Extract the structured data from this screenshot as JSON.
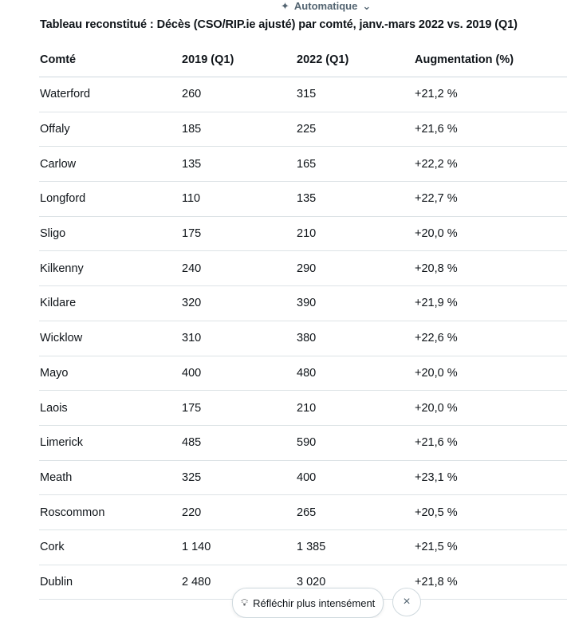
{
  "mode_label": "Automatique",
  "title": "Tableau reconstitué : Décès (CSO/RIP.ie ajusté) par comté, janv.-mars 2022 vs. 2019 (Q1)",
  "headers": [
    "Comté",
    "2019 (Q1)",
    "2022 (Q1)",
    "Augmentation (%)"
  ],
  "rows": [
    [
      "Waterford",
      "260",
      "315",
      "+21,2 %"
    ],
    [
      "Offaly",
      "185",
      "225",
      "+21,6 %"
    ],
    [
      "Carlow",
      "135",
      "165",
      "+22,2 %"
    ],
    [
      "Longford",
      "110",
      "135",
      "+22,7 %"
    ],
    [
      "Sligo",
      "175",
      "210",
      "+20,0 %"
    ],
    [
      "Kilkenny",
      "240",
      "290",
      "+20,8 %"
    ],
    [
      "Kildare",
      "320",
      "390",
      "+21,9 %"
    ],
    [
      "Wicklow",
      "310",
      "380",
      "+22,6 %"
    ],
    [
      "Mayo",
      "400",
      "480",
      "+20,0 %"
    ],
    [
      "Laois",
      "175",
      "210",
      "+20,0 %"
    ],
    [
      "Limerick",
      "485",
      "590",
      "+21,6 %"
    ],
    [
      "Meath",
      "325",
      "400",
      "+23,1 %"
    ],
    [
      "Roscommon",
      "220",
      "265",
      "+20,5 %"
    ],
    [
      "Cork",
      "1 140",
      "1 385",
      "+21,5 %"
    ],
    [
      "Dublin",
      "2 480",
      "3 020",
      "+21,8 %"
    ]
  ],
  "think_harder_label": "Réfléchir plus intensément",
  "close_icon": "×"
}
